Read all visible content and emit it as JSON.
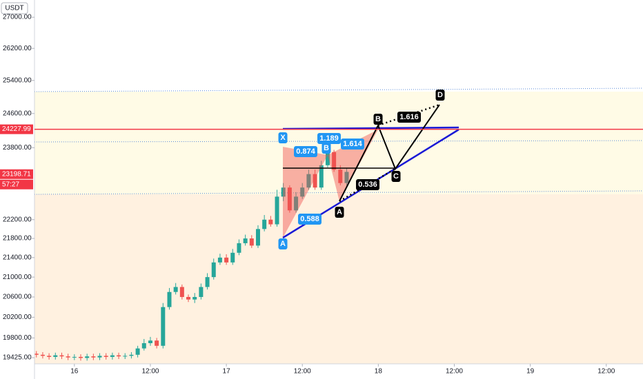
{
  "chart_data": {
    "type": "candlestick",
    "log_scale": true,
    "up_color": "#26a69a",
    "down_color": "#ef5350",
    "currency": "USDT",
    "ylim": [
      19310,
      27455
    ],
    "yticks": [
      {
        "value": 27000,
        "label": "27000.00"
      },
      {
        "value": 26200,
        "label": "26200.00"
      },
      {
        "value": 25400,
        "label": "25400.00"
      },
      {
        "value": 24600,
        "label": "24600.00"
      },
      {
        "value": 23800,
        "label": "23800.00"
      },
      {
        "value": 22200,
        "label": "22200.00"
      },
      {
        "value": 21800,
        "label": "21800.00"
      },
      {
        "value": 21400,
        "label": "21400.00"
      },
      {
        "value": 21000,
        "label": "21000.00"
      },
      {
        "value": 20600,
        "label": "20600.00"
      },
      {
        "value": 20200,
        "label": "20200.00"
      },
      {
        "value": 19800,
        "label": "19800.00"
      },
      {
        "value": 19425,
        "label": "19425.00"
      }
    ],
    "xlim": [
      -6.3,
      89.8
    ],
    "xticks": [
      {
        "value": 0,
        "label": "16"
      },
      {
        "value": 12,
        "label": "12:00"
      },
      {
        "value": 24,
        "label": "17"
      },
      {
        "value": 36,
        "label": "12:00"
      },
      {
        "value": 48,
        "label": "18"
      },
      {
        "value": 60,
        "label": "12:00"
      },
      {
        "value": 72,
        "label": "19"
      },
      {
        "value": 84,
        "label": "12:00"
      }
    ],
    "x": [
      -6,
      -5,
      -4,
      -3,
      -2,
      -1,
      0,
      1,
      2,
      3,
      4,
      5,
      6,
      7,
      8,
      9,
      10,
      11,
      12,
      13,
      14,
      15,
      16,
      17,
      18,
      19,
      20,
      21,
      22,
      23,
      24,
      25,
      26,
      27,
      28,
      29,
      30,
      31,
      32,
      33,
      34,
      35,
      36,
      37,
      38,
      39,
      40,
      41,
      42,
      43
    ],
    "open": [
      19500,
      19480,
      19460,
      19440,
      19470,
      19450,
      19430,
      19440,
      19420,
      19450,
      19430,
      19460,
      19440,
      19470,
      19450,
      19460,
      19480,
      19600,
      19700,
      19750,
      19650,
      20400,
      20700,
      20800,
      20600,
      20550,
      20600,
      20800,
      21000,
      21300,
      21400,
      21300,
      21500,
      21700,
      21800,
      21650,
      22000,
      22200,
      22100,
      22700,
      22900,
      22400,
      22700,
      22900,
      23200,
      22900,
      23400,
      23700,
      23300,
      23000
    ],
    "high": [
      19550,
      19530,
      19510,
      19520,
      19520,
      19500,
      19490,
      19490,
      19500,
      19500,
      19510,
      19510,
      19520,
      19520,
      19510,
      19530,
      19650,
      19780,
      19820,
      19800,
      20480,
      20780,
      20880,
      20850,
      20650,
      20680,
      20870,
      21080,
      21380,
      21480,
      21470,
      21580,
      21780,
      21880,
      21870,
      22080,
      22300,
      22280,
      22850,
      23000,
      22950,
      22800,
      23000,
      23300,
      23300,
      23500,
      23800,
      23750,
      23400,
      23330
    ],
    "low": [
      19430,
      19410,
      19390,
      19390,
      19400,
      19380,
      19380,
      19370,
      19370,
      19380,
      19380,
      19390,
      19390,
      19400,
      19400,
      19410,
      19430,
      19560,
      19650,
      19600,
      19600,
      20350,
      20650,
      20550,
      20500,
      20480,
      20550,
      20750,
      20950,
      21250,
      21250,
      21250,
      21450,
      21650,
      21600,
      21600,
      21950,
      22050,
      22050,
      22600,
      22350,
      22350,
      22650,
      22850,
      22850,
      22850,
      23350,
      23250,
      22950,
      22950
    ],
    "close": [
      19480,
      19460,
      19440,
      19470,
      19450,
      19430,
      19440,
      19420,
      19450,
      19430,
      19460,
      19440,
      19470,
      19450,
      19460,
      19480,
      19600,
      19700,
      19750,
      19650,
      20400,
      20700,
      20800,
      20600,
      20550,
      20600,
      20800,
      21000,
      21300,
      21400,
      21300,
      21500,
      21700,
      21800,
      21650,
      22000,
      22200,
      22100,
      22700,
      22900,
      22400,
      22700,
      22900,
      23200,
      22900,
      23400,
      23700,
      23300,
      23000,
      23250
    ],
    "price_lines": [
      {
        "value": 24227.99,
        "label": "24227.99",
        "color": "#f23645"
      },
      {
        "value": 23198.71,
        "label": "23198.71",
        "color": "#f23645"
      }
    ],
    "countdown": "57:27",
    "annotations": [
      {
        "text": "X",
        "style": "blue"
      },
      {
        "text": "0.874",
        "style": "blue"
      },
      {
        "text": "1.189",
        "style": "blue"
      },
      {
        "text": "B",
        "style": "blue"
      },
      {
        "text": "1.614",
        "style": "blue"
      },
      {
        "text": "0.588",
        "style": "blue"
      },
      {
        "text": "A",
        "style": "blue"
      },
      {
        "text": "B",
        "style": "black"
      },
      {
        "text": "1.616",
        "style": "black"
      },
      {
        "text": "D",
        "style": "black"
      },
      {
        "text": "C",
        "style": "black"
      },
      {
        "text": "0.536",
        "style": "black"
      },
      {
        "text": "A",
        "style": "black"
      }
    ]
  }
}
